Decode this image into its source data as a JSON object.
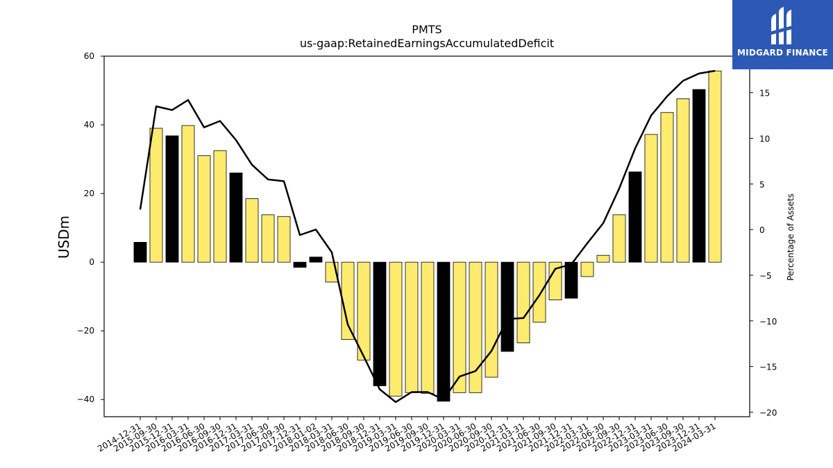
{
  "logo": {
    "text": "MIDGARD FINANCE",
    "icon": "midgard-logo-icon",
    "background": "#2b59b5"
  },
  "chart_data": {
    "type": "bar",
    "title": "PMTS",
    "subtitle": "us-gaap:RetainedEarningsAccumulatedDeficit",
    "ylabel": "USDm",
    "y2label": "Percentage of Assets",
    "ylim": [
      -45,
      60
    ],
    "y2lim": [
      -20.5,
      19
    ],
    "yticks": [
      -40,
      -20,
      0,
      20,
      40,
      60
    ],
    "y2ticks": [
      -20,
      -15,
      -10,
      -5,
      0,
      5,
      10,
      15
    ],
    "colors": {
      "yellow": "#fdeb6f",
      "black": "#000000"
    },
    "categories": [
      "2014-12-31",
      "2015-09-30",
      "2015-12-31",
      "2016-03-31",
      "2016-06-30",
      "2016-09-30",
      "2016-12-31",
      "2017-03-31",
      "2017-06-30",
      "2017-09-30",
      "2017-12-31",
      "2018-01-02",
      "2018-03-31",
      "2018-06-30",
      "2018-09-30",
      "2018-12-31",
      "2019-03-31",
      "2019-06-30",
      "2019-09-30",
      "2019-12-31",
      "2020-03-31",
      "2020-06-30",
      "2020-09-30",
      "2020-12-31",
      "2021-03-31",
      "2021-06-30",
      "2021-09-30",
      "2021-12-31",
      "2022-03-31",
      "2022-06-30",
      "2022-09-30",
      "2022-12-31",
      "2023-03-31",
      "2023-06-30",
      "2023-09-30",
      "2023-12-31",
      "2024-03-31"
    ],
    "series": [
      {
        "type": "bar",
        "values": [
          5.8,
          39,
          36.8,
          39.8,
          31,
          32.5,
          26,
          18.5,
          13.8,
          13.3,
          -1.5,
          1.5,
          -5.8,
          -22.5,
          -28.5,
          -36,
          -39,
          -38,
          -38.2,
          -40.5,
          -38,
          -38,
          -33.5,
          -26,
          -23.5,
          -17.5,
          -11,
          -10.5,
          -4.2,
          2,
          13.8,
          26.3,
          37.2,
          43.6,
          47.6,
          50.3,
          55.7
        ],
        "bar_colors": [
          "black",
          "yellow",
          "black",
          "yellow",
          "yellow",
          "yellow",
          "black",
          "yellow",
          "yellow",
          "yellow",
          "black",
          "black",
          "yellow",
          "yellow",
          "yellow",
          "black",
          "yellow",
          "yellow",
          "yellow",
          "black",
          "yellow",
          "yellow",
          "yellow",
          "black",
          "yellow",
          "yellow",
          "yellow",
          "black",
          "yellow",
          "yellow",
          "yellow",
          "black",
          "yellow",
          "yellow",
          "yellow",
          "black",
          "yellow"
        ]
      },
      {
        "type": "line",
        "axis": "right",
        "values": [
          2.2,
          13.5,
          13.1,
          14.2,
          11.2,
          11.9,
          9.8,
          7.1,
          5.5,
          5.3,
          -0.6,
          0,
          -2.5,
          -10.4,
          -13.9,
          -17.5,
          -18.9,
          -17.8,
          -17.8,
          -18.6,
          -16.1,
          -15.5,
          -13.3,
          -9.8,
          -9.7,
          -7.2,
          -4.3,
          -3.8,
          -1.5,
          0.7,
          4.5,
          8.9,
          12.5,
          14.6,
          16.3,
          17.1,
          17.4
        ]
      }
    ]
  }
}
